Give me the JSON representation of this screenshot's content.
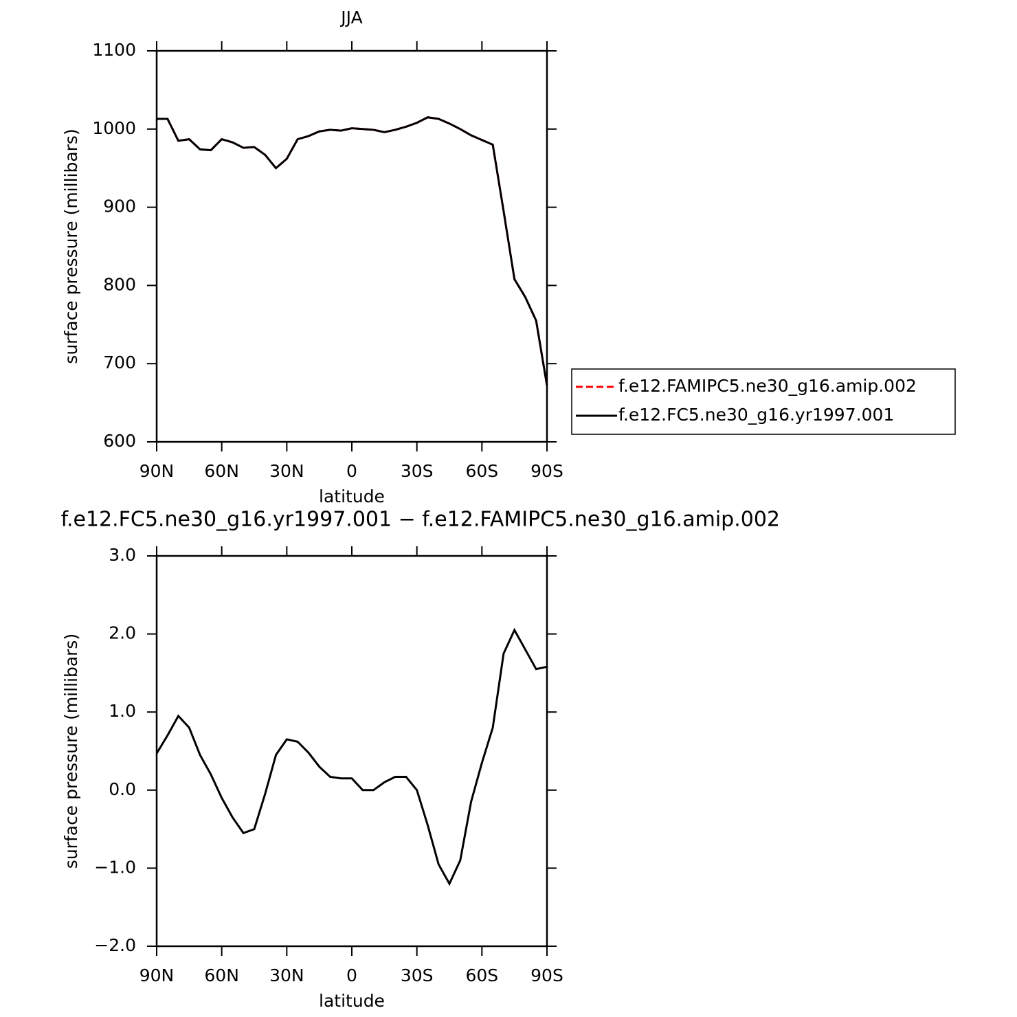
{
  "chart_data": [
    {
      "type": "line",
      "title": "JJA",
      "xlabel": "latitude",
      "ylabel": "surface pressure (millibars)",
      "x": [
        90,
        85,
        80,
        75,
        70,
        65,
        60,
        55,
        50,
        45,
        40,
        35,
        30,
        25,
        20,
        15,
        10,
        5,
        0,
        -5,
        -10,
        -15,
        -20,
        -25,
        -30,
        -35,
        -40,
        -45,
        -50,
        -55,
        -60,
        -65,
        -70,
        -75,
        -80,
        -85,
        -90
      ],
      "series": [
        {
          "name": "f.e12.FAMIPC5.ne30_g16.amip.002",
          "color": "#ff0000",
          "dashed": true,
          "values": [
            1013,
            1013,
            985,
            987,
            974,
            973,
            987,
            983,
            976,
            977,
            967,
            950,
            962,
            987,
            991,
            997,
            999,
            998,
            1001,
            1000,
            999,
            996,
            999,
            1003,
            1008,
            1015,
            1013,
            1007,
            1000,
            992,
            986,
            980,
            895,
            808,
            785,
            755,
            672
          ]
        },
        {
          "name": "f.e12.FC5.ne30_g16.yr1997.001",
          "color": "#000000",
          "dashed": false,
          "values": [
            1013,
            1013,
            985,
            987,
            974,
            973,
            987,
            983,
            976,
            977,
            967,
            950,
            962,
            987,
            991,
            997,
            999,
            998,
            1001,
            1000,
            999,
            996,
            999,
            1003,
            1008,
            1015,
            1013,
            1007,
            1000,
            992,
            986,
            980,
            895,
            808,
            785,
            755,
            672
          ]
        }
      ],
      "xlim": [
        90,
        -90
      ],
      "xticks": [
        {
          "value": 90,
          "label": "90N"
        },
        {
          "value": 60,
          "label": "60N"
        },
        {
          "value": 30,
          "label": "30N"
        },
        0,
        {
          "value": -30,
          "label": "30S"
        },
        {
          "value": -60,
          "label": "60S"
        },
        {
          "value": -90,
          "label": "90S"
        }
      ],
      "ylim": [
        600,
        1100
      ],
      "yticks": [
        600,
        700,
        800,
        900,
        1000,
        1100
      ],
      "legend": "right"
    },
    {
      "type": "line",
      "title": "f.e12.FC5.ne30_g16.yr1997.001 − f.e12.FAMIPC5.ne30_g16.amip.002",
      "xlabel": "latitude",
      "ylabel": "surface pressure (millibars)",
      "x": [
        90,
        85,
        80,
        75,
        70,
        65,
        60,
        55,
        50,
        45,
        40,
        35,
        30,
        25,
        20,
        15,
        10,
        5,
        0,
        -5,
        -10,
        -15,
        -20,
        -25,
        -30,
        -35,
        -40,
        -45,
        -50,
        -55,
        -60,
        -65,
        -70,
        -75,
        -80,
        -85,
        -90
      ],
      "series": [
        {
          "color": "#000000",
          "dashed": false,
          "values": [
            0.47,
            0.7,
            0.95,
            0.8,
            0.45,
            0.2,
            -0.1,
            -0.35,
            -0.55,
            -0.5,
            -0.05,
            0.45,
            0.65,
            0.62,
            0.48,
            0.3,
            0.17,
            0.15,
            0.15,
            0.0,
            0.0,
            0.1,
            0.17,
            0.17,
            0.0,
            -0.45,
            -0.95,
            -1.2,
            -0.9,
            -0.15,
            0.35,
            0.8,
            1.75,
            2.05,
            1.8,
            1.55,
            1.58
          ]
        }
      ],
      "xlim": [
        90,
        -90
      ],
      "xticks": [
        {
          "value": 90,
          "label": "90N"
        },
        {
          "value": 60,
          "label": "60N"
        },
        {
          "value": 30,
          "label": "30N"
        },
        0,
        {
          "value": -30,
          "label": "30S"
        },
        {
          "value": -60,
          "label": "60S"
        },
        {
          "value": -90,
          "label": "90S"
        }
      ],
      "ylim": [
        -2,
        3
      ],
      "yticks": [
        {
          "value": -2,
          "label": "−2.0"
        },
        {
          "value": -1,
          "label": "−1.0"
        },
        {
          "value": 0,
          "label": "0.0"
        },
        {
          "value": 1,
          "label": "1.0"
        },
        {
          "value": 2,
          "label": "2.0"
        },
        {
          "value": 3,
          "label": "3.0"
        }
      ]
    }
  ]
}
